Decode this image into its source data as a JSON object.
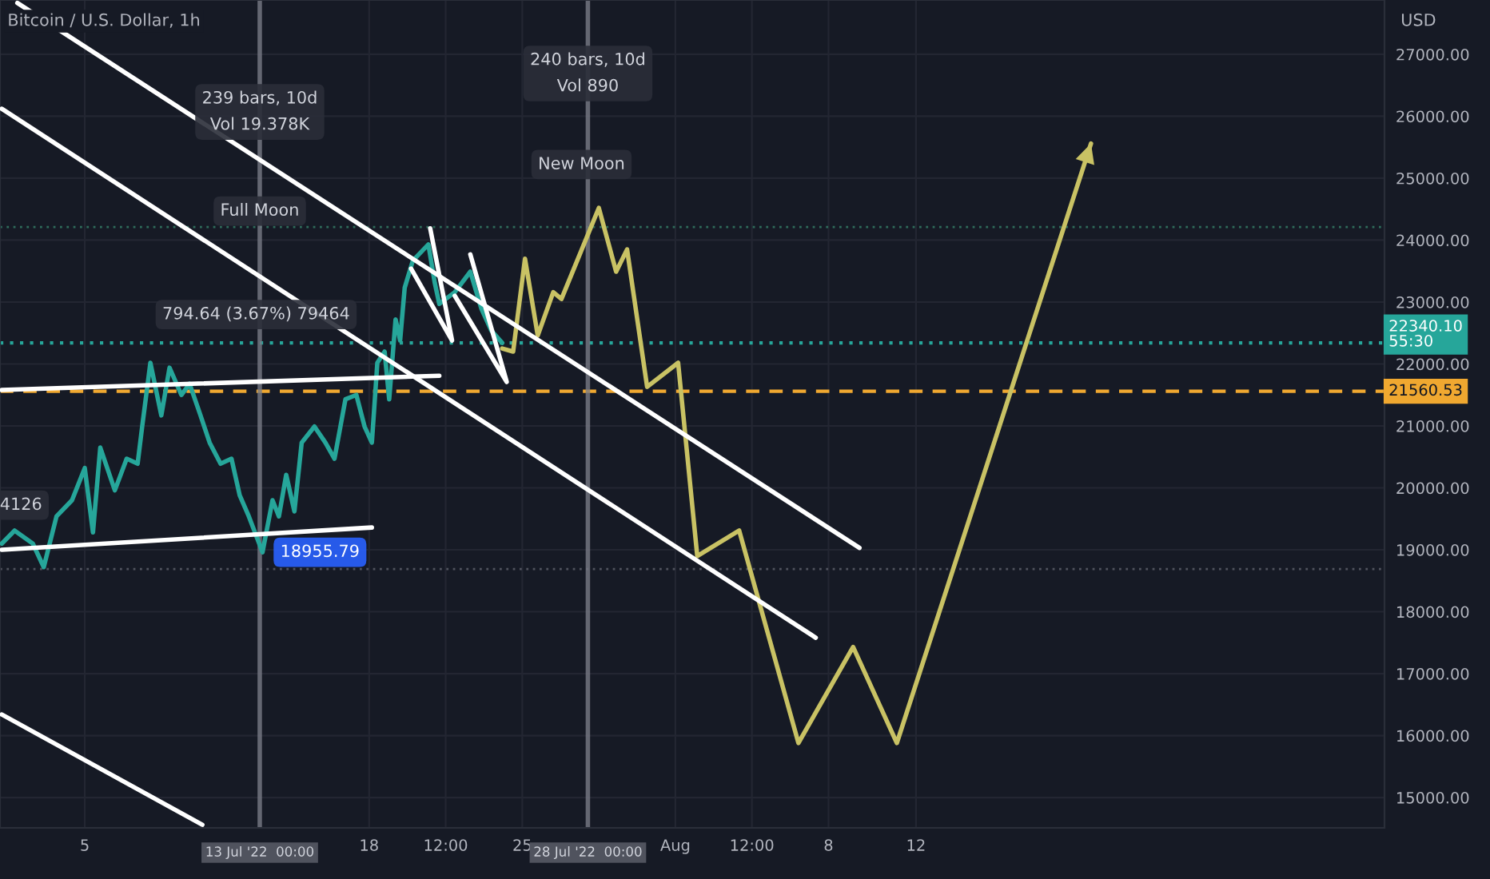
{
  "chart_data": {
    "type": "line",
    "title": "Bitcoin / U.S. Dollar, 1h",
    "ylabel": "USD",
    "xlim": [
      "2022-07-01T03:00",
      "2022-09-02T10:00"
    ],
    "ylim": [
      14510,
      27877
    ],
    "xticks": [
      {
        "value": "2022-07-05",
        "label": "5"
      },
      {
        "value": "2022-07-18",
        "label": "18"
      },
      {
        "value": "2022-07-21T12:00",
        "label": "12:00"
      },
      {
        "value": "2022-07-25",
        "label": "25"
      },
      {
        "value": "2022-08-01",
        "label": "Aug"
      },
      {
        "value": "2022-08-04T12:00",
        "label": "12:00"
      },
      {
        "value": "2022-08-08",
        "label": "8"
      },
      {
        "value": "2022-08-12",
        "label": "12"
      }
    ],
    "yticks": [
      {
        "value": 15000,
        "label": "15000.00"
      },
      {
        "value": 16000,
        "label": "16000.00"
      },
      {
        "value": 17000,
        "label": "17000.00"
      },
      {
        "value": 18000,
        "label": "18000.00"
      },
      {
        "value": 19000,
        "label": "19000.00"
      },
      {
        "value": 20000,
        "label": "20000.00"
      },
      {
        "value": 21000,
        "label": "21000.00"
      },
      {
        "value": 22000,
        "label": "22000.00"
      },
      {
        "value": 23000,
        "label": "23000.00"
      },
      {
        "value": 24000,
        "label": "24000.00"
      },
      {
        "value": 25000,
        "label": "25000.00"
      },
      {
        "value": 26000,
        "label": "26000.00"
      },
      {
        "value": 27000,
        "label": "27000.00"
      }
    ],
    "grid": true,
    "marker": "none",
    "line_style": "solid",
    "series": [
      {
        "color": "#26a69a",
        "x": [
          "2022-07-01T05:00",
          "2022-07-01T19:00",
          "2022-07-02T15:00",
          "2022-07-03T03:00",
          "2022-07-03T17:00",
          "2022-07-04T10:00",
          "2022-07-05T00:00",
          "2022-07-05T09:00",
          "2022-07-05T17:00",
          "2022-07-06T09:00",
          "2022-07-06T22:00",
          "2022-07-07T10:00",
          "2022-07-07T15:00",
          "2022-07-08T00:00",
          "2022-07-08T12:00",
          "2022-07-08T21:00",
          "2022-07-09T10:00",
          "2022-07-09T19:00",
          "2022-07-10T07:00",
          "2022-07-10T17:00",
          "2022-07-11T05:00",
          "2022-07-11T17:00",
          "2022-07-12T02:00",
          "2022-07-12T12:00",
          "2022-07-13T03:00",
          "2022-07-13T14:00",
          "2022-07-13T21:00",
          "2022-07-14T05:00",
          "2022-07-14T14:00",
          "2022-07-14T22:00",
          "2022-07-15T12:00",
          "2022-07-16T00:00",
          "2022-07-16T10:00",
          "2022-07-16T22:00",
          "2022-07-17T10:00",
          "2022-07-17T19:00",
          "2022-07-18T03:00",
          "2022-07-18T09:00",
          "2022-07-18T17:00",
          "2022-07-18T22:00",
          "2022-07-19T05:00",
          "2022-07-19T10:00",
          "2022-07-19T15:00",
          "2022-07-20T00:00",
          "2022-07-20T17:00",
          "2022-07-21T00:00",
          "2022-07-21T05:00",
          "2022-07-21T22:00",
          "2022-07-22T15:00",
          "2022-07-23T03:00",
          "2022-07-23T14:00",
          "2022-07-24T02:00"
        ],
        "values": [
          19100,
          19310,
          19100,
          18720,
          19540,
          19800,
          20320,
          19280,
          20650,
          19960,
          20470,
          20390,
          20990,
          22020,
          21170,
          21940,
          21500,
          21680,
          21170,
          20730,
          20390,
          20470,
          19880,
          19540,
          18960,
          19800,
          19540,
          20210,
          19620,
          20730,
          20990,
          20730,
          20470,
          21430,
          21500,
          20990,
          20730,
          22020,
          22200,
          21430,
          22720,
          22380,
          23230,
          23670,
          23930,
          23310,
          22970,
          23160,
          23490,
          22900,
          22540,
          22340
        ]
      },
      {
        "color": "#c9c264",
        "x": [
          "2022-07-24T02:00",
          "2022-07-24T14:00",
          "2022-07-25T03:00",
          "2022-07-25T17:00",
          "2022-07-26T10:00",
          "2022-07-26T19:00",
          "2022-07-28T12:00",
          "2022-07-29T07:00",
          "2022-07-29T19:00",
          "2022-07-30T17:00",
          "2022-08-01T03:00",
          "2022-08-02T00:00",
          "2022-08-03T22:00",
          "2022-08-06T15:00",
          "2022-08-09T03:00",
          "2022-08-11T03:00",
          "2022-08-20T00:00"
        ],
        "values": [
          22250,
          22200,
          23700,
          22460,
          23160,
          23050,
          24520,
          23490,
          23850,
          21630,
          22020,
          18900,
          19310,
          15880,
          17430,
          15880,
          25560
        ]
      },
      {
        "color": "#ffffff",
        "x": [
          "2022-07-01T22:00",
          "2022-08-09T10:00"
        ],
        "values": [
          27830,
          19030
        ]
      },
      {
        "color": "#ffffff",
        "x": [
          "2022-07-01T05:00",
          "2022-08-07T10:00"
        ],
        "values": [
          26120,
          17580
        ]
      },
      {
        "color": "#ffffff",
        "x": [
          "2022-07-01T05:00",
          "2022-07-10T09:00"
        ],
        "values": [
          16340,
          14560
        ]
      },
      {
        "color": "#ffffff",
        "x": [
          "2022-07-01T05:00",
          "2022-07-21T05:00"
        ],
        "values": [
          21580,
          21810
        ]
      },
      {
        "color": "#ffffff",
        "x": [
          "2022-07-01T05:00",
          "2022-07-18T03:00"
        ],
        "values": [
          19000,
          19360
        ]
      },
      {
        "color": "#ffffff",
        "x": [
          "2022-07-19T22:00",
          "2022-07-21T19:00",
          "2022-07-20T19:00"
        ],
        "values": [
          23540,
          22380,
          24190
        ]
      },
      {
        "color": "#ffffff",
        "x": [
          "2022-07-21T22:00",
          "2022-07-24T07:00",
          "2022-07-22T15:00"
        ],
        "values": [
          23100,
          21710,
          23770
        ]
      }
    ],
    "ref_lines": [
      {
        "axis": "y",
        "value": 21560.53,
        "label": "21560.53",
        "color": "#f0a830",
        "line_style": "dashed"
      },
      {
        "axis": "y",
        "value": 22340.1,
        "label": "22340.10\n55:30",
        "color": "#26a69a",
        "line_style": "dotted"
      },
      {
        "axis": "y",
        "value": 24210,
        "color": "#2e6b5a",
        "line_style": "dotted"
      },
      {
        "axis": "y",
        "value": 18690,
        "color": "#50535e",
        "line_style": "dotted"
      },
      {
        "axis": "x",
        "value": "2022-07-13",
        "label": "13 Jul '22  00:00",
        "color": "#787b86"
      },
      {
        "axis": "x",
        "value": "2022-07-28",
        "label": "28 Jul '22  00:00",
        "color": "#787b86"
      }
    ],
    "annotations": [
      {
        "text": "239 bars, 10d\nVol 19.378K",
        "x": "2022-07-13",
        "y": 26070
      },
      {
        "text": "240 bars, 10d\nVol 890",
        "x": "2022-07-28",
        "y": 26690
      },
      {
        "text": "Full Moon",
        "x": "2022-07-13",
        "y": 24470
      },
      {
        "text": "New Moon",
        "x": "2022-07-27T17:00",
        "y": 25220
      },
      "794.64 (3.67%) 79464",
      {
        "text": "18955.79",
        "x": "2022-07-13T03:00",
        "y": 18960
      },
      {
        "text": "4126",
        "x": "2022-07-02T02:00",
        "y": 19720
      }
    ]
  }
}
